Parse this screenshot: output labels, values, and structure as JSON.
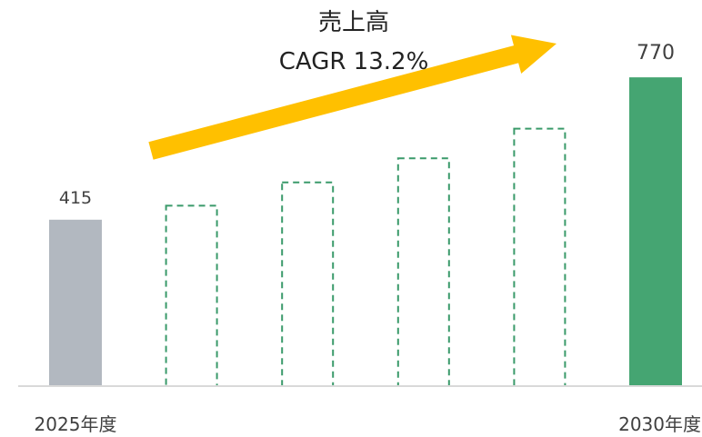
{
  "chart_data": {
    "type": "bar",
    "categories": [
      "2025年度",
      "",
      "",
      "",
      "",
      "2030年度"
    ],
    "values": [
      415,
      450,
      508,
      568,
      642,
      770
    ],
    "bar_styles": [
      "actual",
      "projected",
      "projected",
      "projected",
      "projected",
      "target"
    ],
    "data_labels": [
      "415",
      "",
      "",
      "",
      "",
      "770"
    ],
    "ylim": [
      0,
      800
    ],
    "grid": false,
    "legend": "none",
    "annotation": {
      "line1": "売上高",
      "line2": "CAGR 13.2%"
    },
    "colors": {
      "actual": "#b2b8c0",
      "projected": "#3a9a6a",
      "target": "#45a572",
      "arrow": "#ffc000",
      "baseline": "#d9d9d9"
    }
  }
}
